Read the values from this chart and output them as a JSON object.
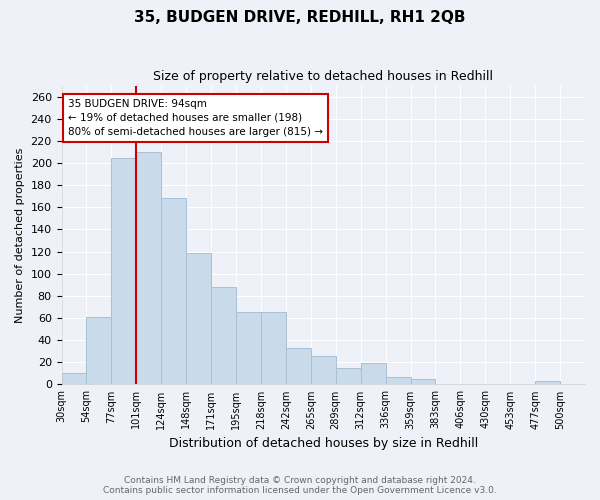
{
  "title": "35, BUDGEN DRIVE, REDHILL, RH1 2QB",
  "subtitle": "Size of property relative to detached houses in Redhill",
  "xlabel": "Distribution of detached houses by size in Redhill",
  "ylabel": "Number of detached properties",
  "categories": [
    "30sqm",
    "54sqm",
    "77sqm",
    "101sqm",
    "124sqm",
    "148sqm",
    "171sqm",
    "195sqm",
    "218sqm",
    "242sqm",
    "265sqm",
    "289sqm",
    "312sqm",
    "336sqm",
    "359sqm",
    "383sqm",
    "406sqm",
    "430sqm",
    "453sqm",
    "477sqm",
    "500sqm"
  ],
  "values": [
    10,
    61,
    205,
    210,
    168,
    119,
    88,
    65,
    65,
    33,
    26,
    15,
    19,
    7,
    5,
    0,
    0,
    0,
    0,
    3,
    0
  ],
  "bar_color": "#c9daea",
  "bar_edgecolor": "#a8c0d6",
  "redline_bin": 3,
  "annotation_title": "35 BUDGEN DRIVE: 94sqm",
  "annotation_line1": "← 19% of detached houses are smaller (198)",
  "annotation_line2": "80% of semi-detached houses are larger (815) →",
  "annotation_box_color": "#ffffff",
  "annotation_box_edgecolor": "#cc0000",
  "ylim": [
    0,
    270
  ],
  "yticks": [
    0,
    20,
    40,
    60,
    80,
    100,
    120,
    140,
    160,
    180,
    200,
    220,
    240,
    260
  ],
  "footer_line1": "Contains HM Land Registry data © Crown copyright and database right 2024.",
  "footer_line2": "Contains public sector information licensed under the Open Government Licence v3.0.",
  "background_color": "#eef2f8",
  "grid_color": "#ffffff",
  "title_fontsize": 11,
  "subtitle_fontsize": 9,
  "xlabel_fontsize": 9,
  "ylabel_fontsize": 8
}
